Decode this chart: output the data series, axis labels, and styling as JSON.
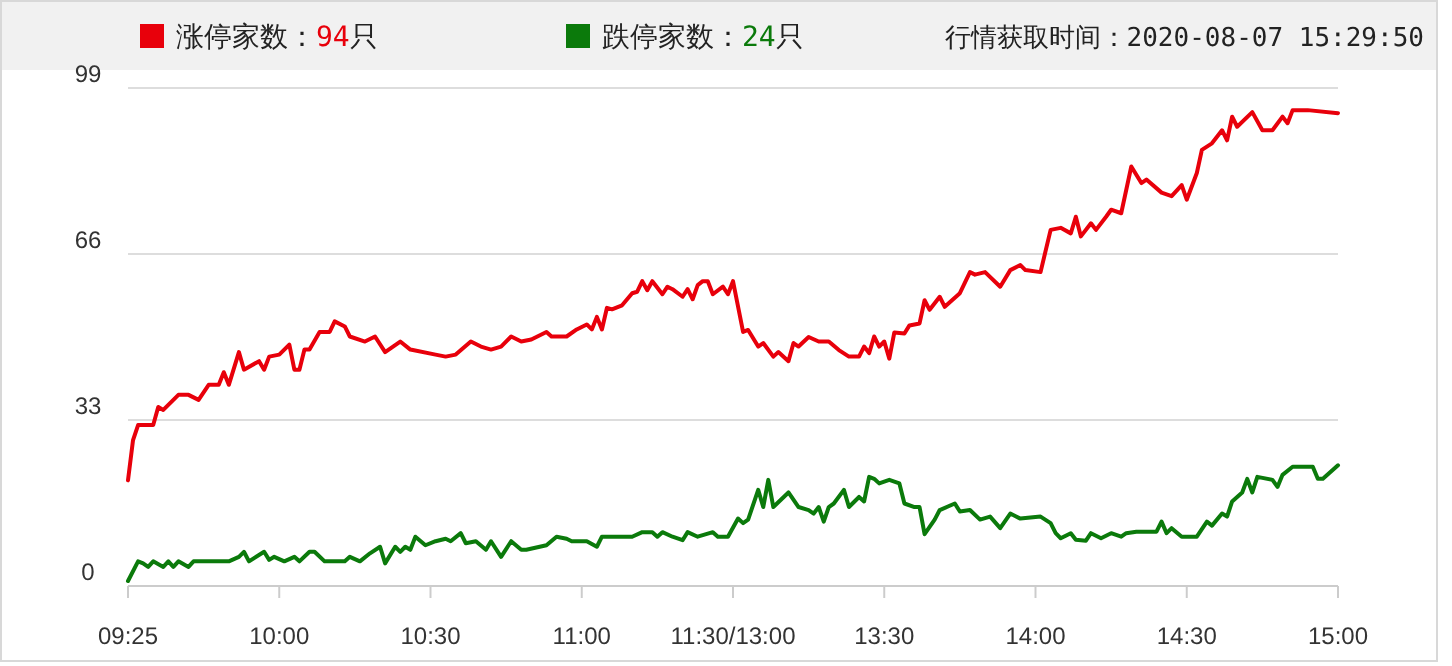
{
  "chart_data": {
    "type": "line",
    "categories": [
      "09:25",
      null,
      null,
      null,
      null,
      null,
      null,
      null,
      null,
      null,
      null,
      null,
      null,
      null,
      null,
      null,
      null,
      null,
      null,
      null,
      null,
      null,
      null,
      null,
      null,
      null,
      null,
      null,
      null,
      null,
      "10:00",
      null,
      null,
      null,
      null,
      null,
      null,
      null,
      null,
      null,
      null,
      null,
      null,
      null,
      null,
      null,
      null,
      null,
      null,
      null,
      null,
      null,
      null,
      null,
      null,
      null,
      null,
      null,
      null,
      null,
      "10:30",
      null,
      null,
      null,
      null,
      null,
      null,
      null,
      null,
      null,
      null,
      null,
      null,
      null,
      null,
      null,
      null,
      null,
      null,
      null,
      null,
      null,
      null,
      null,
      null,
      null,
      null,
      null,
      null,
      null,
      "11:00",
      null,
      null,
      null,
      null,
      null,
      null,
      null,
      null,
      null,
      null,
      null,
      null,
      null,
      null,
      null,
      null,
      null,
      null,
      null,
      null,
      null,
      null,
      null,
      null,
      null,
      null,
      null,
      null,
      null,
      "11:30/13:00",
      null,
      null,
      null,
      null,
      null,
      null,
      null,
      null,
      null,
      null,
      null,
      null,
      null,
      null,
      null,
      null,
      null,
      null,
      null,
      null,
      null,
      null,
      null,
      null,
      null,
      null,
      null,
      null,
      null,
      "13:30",
      null,
      null,
      null,
      null,
      null,
      null,
      null,
      null,
      null,
      null,
      null,
      null,
      null,
      null,
      null,
      null,
      null,
      null,
      null,
      null,
      null,
      null,
      null,
      null,
      null,
      null,
      null,
      null,
      null,
      "14:00",
      null,
      null,
      null,
      null,
      null,
      null,
      null,
      null,
      null,
      null,
      null,
      null,
      null,
      null,
      null,
      null,
      null,
      null,
      null,
      null,
      null,
      null,
      null,
      null,
      null,
      null,
      null,
      null,
      null,
      "14:30",
      null,
      null,
      null,
      null,
      null,
      null,
      null,
      null,
      null,
      null,
      null,
      null,
      null,
      null,
      null,
      null,
      null,
      null,
      null,
      null,
      null,
      null,
      null,
      null,
      null,
      null,
      null,
      null,
      null,
      "15:00"
    ],
    "series": [
      {
        "name": "涨停家数：94只",
        "color": "#e8000b",
        "values": [
          21,
          29,
          32,
          null,
          null,
          32,
          35.6,
          35,
          36,
          null,
          38,
          null,
          38,
          null,
          37,
          null,
          40,
          null,
          40,
          42.5,
          40,
          null,
          46.5,
          43,
          null,
          null,
          44.7,
          43,
          45.6,
          null,
          46,
          null,
          48,
          43,
          43,
          47,
          47,
          null,
          50.5,
          null,
          50.5,
          52.6,
          null,
          51.6,
          49.6,
          null,
          null,
          48.6,
          null,
          49.6,
          null,
          46.5,
          null,
          null,
          48.6,
          null,
          47,
          null,
          null,
          null,
          null,
          46,
          null,
          45.6,
          null,
          46,
          null,
          null,
          48.6,
          null,
          47.6,
          null,
          47,
          null,
          47.6,
          null,
          49.6,
          null,
          48.6,
          null,
          49,
          null,
          null,
          50.5,
          49.6,
          null,
          null,
          49.6,
          null,
          51,
          null,
          52,
          51,
          53.5,
          51,
          55.3,
          55,
          null,
          55.8,
          null,
          58.2,
          58.5,
          60.6,
          58.8,
          60.6,
          null,
          58,
          59.5,
          59,
          null,
          57.5,
          59,
          57,
          59.8,
          60.6,
          60.6,
          58,
          null,
          59.5,
          58,
          60.6,
          null,
          50.5,
          50.9,
          null,
          47.6,
          48.3,
          null,
          45.6,
          46.5,
          null,
          44.7,
          48.3,
          47.6,
          null,
          49.5,
          null,
          48.6,
          null,
          48.6,
          null,
          46.9,
          null,
          45.6,
          null,
          45.6,
          47.6,
          46.3,
          49.6,
          47.6,
          48.6,
          45.2,
          50.4,
          null,
          50.2,
          51.8,
          null,
          52.2,
          56.8,
          54.9,
          null,
          57.5,
          55.5,
          null,
          null,
          58.2,
          null,
          62.4,
          61.9,
          null,
          62.4,
          null,
          null,
          59.5,
          null,
          62.8,
          null,
          63.8,
          62.8,
          null,
          null,
          62.4,
          null,
          70.8,
          null,
          71.2,
          null,
          70.1,
          73.4,
          69.5,
          null,
          72.1,
          70.8,
          null,
          73.4,
          74.8,
          null,
          74.1,
          null,
          83.4,
          null,
          80.1,
          80.8,
          null,
          null,
          78.2,
          null,
          77.5,
          null,
          79.7,
          76.8,
          null,
          82.1,
          86.7,
          null,
          88,
          null,
          90.6,
          88.6,
          93.3,
          91.3,
          null,
          null,
          94.2,
          null,
          90.6,
          null,
          90.6,
          null,
          93.3,
          92,
          94.6,
          null,
          null,
          94.6,
          null,
          null,
          null,
          null,
          null,
          94
        ]
      },
      {
        "name": "跌停家数：24只",
        "color": "#0b7a0b",
        "values": [
          1,
          null,
          4.9,
          4.5,
          3.8,
          4.9,
          null,
          3.8,
          4.9,
          3.8,
          4.9,
          null,
          3.8,
          4.9,
          null,
          null,
          null,
          null,
          null,
          null,
          4.9,
          null,
          5.8,
          6.8,
          4.9,
          null,
          null,
          6.8,
          5.2,
          5.8,
          null,
          4.9,
          null,
          5.8,
          4.9,
          null,
          6.8,
          6.8,
          null,
          4.9,
          null,
          null,
          null,
          4.9,
          5.8,
          null,
          4.9,
          null,
          6.5,
          null,
          7.8,
          4.5,
          null,
          7.8,
          6.8,
          7.8,
          7.2,
          9.8,
          null,
          8.1,
          null,
          8.9,
          null,
          9.4,
          8.9,
          null,
          10.5,
          8.5,
          null,
          8.9,
          null,
          7.2,
          8.9,
          null,
          5.8,
          null,
          8.9,
          null,
          7.2,
          7.2,
          null,
          null,
          null,
          8.1,
          null,
          9.8,
          null,
          9.4,
          8.9,
          null,
          null,
          8.9,
          null,
          7.8,
          9.8,
          null,
          null,
          null,
          null,
          null,
          9.8,
          null,
          10.7,
          null,
          10.7,
          9.8,
          10.7,
          null,
          9.8,
          null,
          9.1,
          10.7,
          null,
          9.8,
          null,
          null,
          10.7,
          9.8,
          null,
          9.8,
          null,
          13.4,
          12.5,
          13.2,
          null,
          19.1,
          15.7,
          21.1,
          15.7,
          null,
          null,
          18.6,
          null,
          15.7,
          null,
          15.1,
          14.4,
          15.7,
          12.8,
          15.7,
          16.4,
          null,
          19.1,
          15.7,
          null,
          17.7,
          16.8,
          21.7,
          21.3,
          20.4,
          null,
          21.1,
          null,
          20.4,
          16.4,
          null,
          15.7,
          15.7,
          10.3,
          null,
          13.2,
          15.1,
          null,
          null,
          16.4,
          14.8,
          null,
          15.1,
          null,
          13.2,
          null,
          13.8,
          null,
          11.5,
          null,
          14.4,
          null,
          13.4,
          null,
          null,
          null,
          13.8,
          null,
          12.5,
          10.5,
          9.5,
          null,
          10.5,
          9.2,
          null,
          9,
          10.5,
          null,
          9.5,
          null,
          10.5,
          null,
          9.8,
          10.5,
          null,
          10.8,
          null,
          null,
          null,
          10.8,
          12.8,
          10.5,
          11.5,
          null,
          9.8,
          null,
          null,
          9.8,
          null,
          12.8,
          12,
          null,
          14.4,
          13.8,
          16.8,
          null,
          18.6,
          21.3,
          18.6,
          21.7,
          null,
          null,
          21.1,
          19.7,
          22.1,
          null,
          23.7,
          null,
          null,
          null,
          23.7,
          21.3,
          21.3,
          null,
          null,
          24
        ]
      }
    ],
    "ylim": [
      0,
      99
    ],
    "yticks": [
      0,
      33,
      66,
      99
    ],
    "grid": "y",
    "legend": "top left",
    "marker": "none",
    "line_style": "solid",
    "annotations": [
      "行情获取时间：2020-08-07 15:29:50"
    ]
  }
}
